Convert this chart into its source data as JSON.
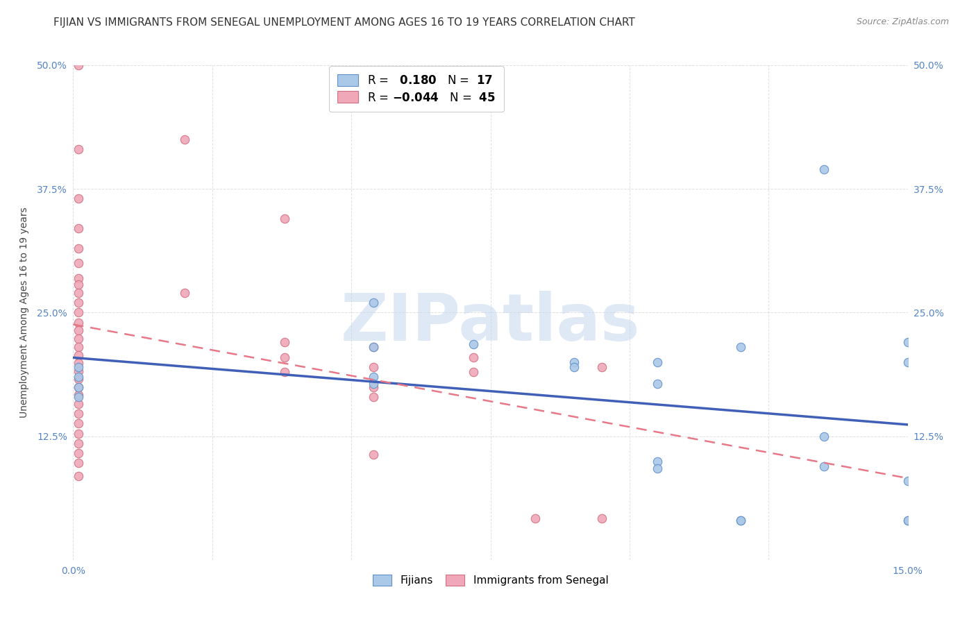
{
  "title": "FIJIAN VS IMMIGRANTS FROM SENEGAL UNEMPLOYMENT AMONG AGES 16 TO 19 YEARS CORRELATION CHART",
  "source": "Source: ZipAtlas.com",
  "ylabel": "Unemployment Among Ages 16 to 19 years",
  "xlim": [
    0.0,
    0.15
  ],
  "ylim": [
    0.0,
    0.5
  ],
  "xticks": [
    0.0,
    0.025,
    0.05,
    0.075,
    0.1,
    0.125,
    0.15
  ],
  "xtick_labels": [
    "0.0%",
    "",
    "",
    "",
    "",
    "",
    "15.0%"
  ],
  "yticks": [
    0.0,
    0.125,
    0.25,
    0.375,
    0.5
  ],
  "ytick_labels": [
    "",
    "12.5%",
    "25.0%",
    "37.5%",
    "50.0%"
  ],
  "fijian_color": "#aac8e8",
  "fijian_edge_color": "#6090c8",
  "senegal_color": "#f0a8b8",
  "senegal_edge_color": "#d07080",
  "fijian_line_color": "#4060b8",
  "senegal_line_color": "#e87888",
  "tick_color": "#5585c5",
  "watermark_text": "ZIPatlas",
  "fijian_points": [
    [
      0.001,
      0.195
    ],
    [
      0.001,
      0.185
    ],
    [
      0.001,
      0.175
    ],
    [
      0.001,
      0.165
    ],
    [
      0.054,
      0.26
    ],
    [
      0.054,
      0.215
    ],
    [
      0.054,
      0.185
    ],
    [
      0.054,
      0.178
    ],
    [
      0.072,
      0.218
    ],
    [
      0.09,
      0.2
    ],
    [
      0.09,
      0.195
    ],
    [
      0.105,
      0.2
    ],
    [
      0.105,
      0.178
    ],
    [
      0.105,
      0.1
    ],
    [
      0.105,
      0.093
    ],
    [
      0.12,
      0.215
    ],
    [
      0.12,
      0.04
    ],
    [
      0.12,
      0.04
    ],
    [
      0.135,
      0.395
    ],
    [
      0.135,
      0.125
    ],
    [
      0.135,
      0.095
    ],
    [
      0.15,
      0.22
    ],
    [
      0.15,
      0.2
    ],
    [
      0.15,
      0.08
    ],
    [
      0.15,
      0.04
    ],
    [
      0.15,
      0.04
    ]
  ],
  "senegal_points": [
    [
      0.001,
      0.5
    ],
    [
      0.001,
      0.415
    ],
    [
      0.001,
      0.365
    ],
    [
      0.001,
      0.335
    ],
    [
      0.001,
      0.315
    ],
    [
      0.001,
      0.3
    ],
    [
      0.001,
      0.285
    ],
    [
      0.001,
      0.278
    ],
    [
      0.001,
      0.27
    ],
    [
      0.001,
      0.26
    ],
    [
      0.001,
      0.25
    ],
    [
      0.001,
      0.24
    ],
    [
      0.001,
      0.232
    ],
    [
      0.001,
      0.224
    ],
    [
      0.001,
      0.215
    ],
    [
      0.001,
      0.207
    ],
    [
      0.001,
      0.199
    ],
    [
      0.001,
      0.191
    ],
    [
      0.001,
      0.183
    ],
    [
      0.001,
      0.175
    ],
    [
      0.001,
      0.167
    ],
    [
      0.001,
      0.158
    ],
    [
      0.001,
      0.148
    ],
    [
      0.001,
      0.138
    ],
    [
      0.001,
      0.128
    ],
    [
      0.001,
      0.118
    ],
    [
      0.001,
      0.108
    ],
    [
      0.001,
      0.098
    ],
    [
      0.001,
      0.085
    ],
    [
      0.02,
      0.425
    ],
    [
      0.02,
      0.27
    ],
    [
      0.038,
      0.345
    ],
    [
      0.038,
      0.22
    ],
    [
      0.038,
      0.205
    ],
    [
      0.038,
      0.19
    ],
    [
      0.054,
      0.215
    ],
    [
      0.054,
      0.195
    ],
    [
      0.054,
      0.175
    ],
    [
      0.054,
      0.165
    ],
    [
      0.054,
      0.107
    ],
    [
      0.072,
      0.205
    ],
    [
      0.072,
      0.19
    ],
    [
      0.083,
      0.042
    ],
    [
      0.095,
      0.042
    ],
    [
      0.095,
      0.195
    ]
  ],
  "background_color": "#ffffff",
  "grid_color": "#e0e0e0",
  "title_fontsize": 11,
  "axis_fontsize": 10,
  "tick_fontsize": 10,
  "source_fontsize": 9
}
